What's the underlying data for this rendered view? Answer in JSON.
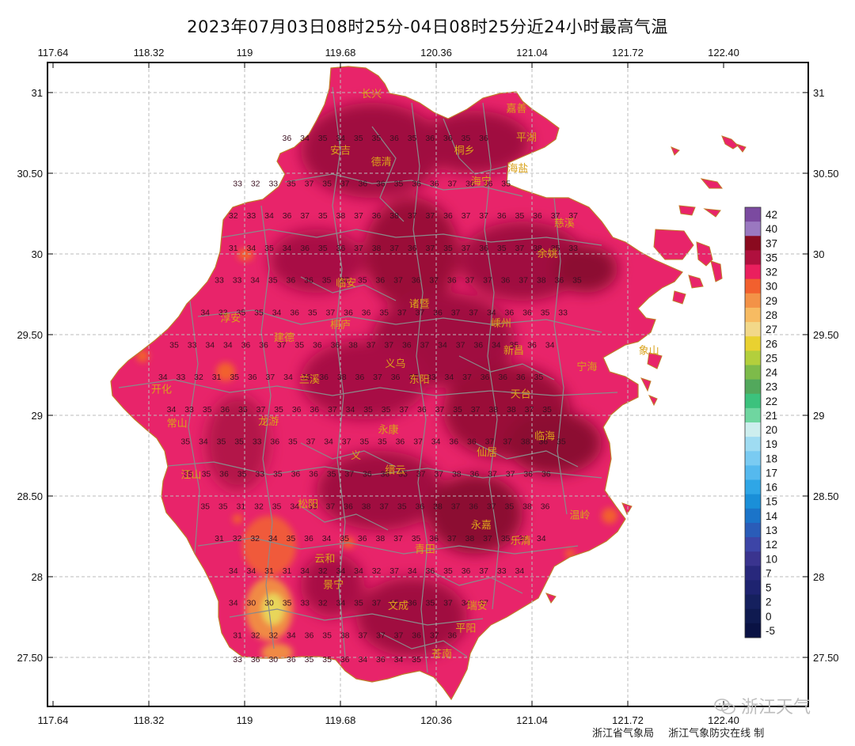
{
  "title": "2023年07月03日08时25分-04日08时25分近24小时最高气温",
  "x_ticks": [
    "117.64",
    "118.32",
    "119",
    "119.68",
    "120.36",
    "121.04",
    "121.72",
    "122.40"
  ],
  "y_ticks": [
    "31",
    "30.50",
    "30",
    "29.50",
    "29",
    "28.50",
    "28",
    "27.50"
  ],
  "legend": {
    "labels": [
      "42",
      "40",
      "37",
      "35",
      "32",
      "30",
      "29",
      "28",
      "27",
      "26",
      "25",
      "24",
      "23",
      "22",
      "21",
      "20",
      "19",
      "18",
      "17",
      "16",
      "15",
      "14",
      "13",
      "12",
      "10",
      "7",
      "5",
      "2",
      "0",
      "-5"
    ],
    "colors": [
      "#7b4aa0",
      "#9a78c0",
      "#8a0a1f",
      "#b0103e",
      "#ea1f5e",
      "#f2602e",
      "#f39247",
      "#f7bb62",
      "#f2d889",
      "#e9d130",
      "#b3cf3c",
      "#7dbb4a",
      "#52a85c",
      "#3cc27d",
      "#6fd6a0",
      "#cdeeee",
      "#9fdcf2",
      "#7acbf2",
      "#55b9ee",
      "#2fa6e6",
      "#1a8fd8",
      "#1b74c9",
      "#2a5cb8",
      "#3d45a7",
      "#3a348f",
      "#28287c",
      "#1e2370",
      "#15205e",
      "#0f1a50",
      "#0a1244"
    ]
  },
  "cities": [
    {
      "name": "长兴",
      "lon": 119.9,
      "lat": 30.97
    },
    {
      "name": "嘉善",
      "lon": 120.93,
      "lat": 30.88
    },
    {
      "name": "平湖",
      "lon": 121.0,
      "lat": 30.7
    },
    {
      "name": "安吉",
      "lon": 119.68,
      "lat": 30.62
    },
    {
      "name": "德清",
      "lon": 119.97,
      "lat": 30.55
    },
    {
      "name": "桐乡",
      "lon": 120.56,
      "lat": 30.62
    },
    {
      "name": "海盐",
      "lon": 120.94,
      "lat": 30.51
    },
    {
      "name": "海宁",
      "lon": 120.68,
      "lat": 30.43
    },
    {
      "name": "慈溪",
      "lon": 121.27,
      "lat": 30.17
    },
    {
      "name": "余姚",
      "lon": 121.15,
      "lat": 29.98
    },
    {
      "name": "临安",
      "lon": 119.72,
      "lat": 29.8
    },
    {
      "name": "诸暨",
      "lon": 120.24,
      "lat": 29.67
    },
    {
      "name": "嵊州",
      "lon": 120.82,
      "lat": 29.55
    },
    {
      "name": "淳安",
      "lon": 118.9,
      "lat": 29.58
    },
    {
      "name": "桐庐",
      "lon": 119.68,
      "lat": 29.54
    },
    {
      "name": "建德",
      "lon": 119.28,
      "lat": 29.46
    },
    {
      "name": "新昌",
      "lon": 120.91,
      "lat": 29.38
    },
    {
      "name": "象山",
      "lon": 121.87,
      "lat": 29.38
    },
    {
      "name": "宁海",
      "lon": 121.43,
      "lat": 29.28
    },
    {
      "name": "义乌",
      "lon": 120.07,
      "lat": 29.3
    },
    {
      "name": "兰溪",
      "lon": 119.46,
      "lat": 29.2
    },
    {
      "name": "东阳",
      "lon": 120.24,
      "lat": 29.2
    },
    {
      "name": "开化",
      "lon": 118.41,
      "lat": 29.14
    },
    {
      "name": "天台",
      "lon": 120.96,
      "lat": 29.11
    },
    {
      "name": "常山",
      "lon": 118.52,
      "lat": 28.93
    },
    {
      "name": "龙游",
      "lon": 119.17,
      "lat": 28.94
    },
    {
      "name": "永康",
      "lon": 120.02,
      "lat": 28.89
    },
    {
      "name": "临海",
      "lon": 121.13,
      "lat": 28.85
    },
    {
      "name": "义",
      "lon": 119.79,
      "lat": 28.73
    },
    {
      "name": "仙居",
      "lon": 120.72,
      "lat": 28.75
    },
    {
      "name": "江山",
      "lon": 118.62,
      "lat": 28.61
    },
    {
      "name": "缙云",
      "lon": 120.07,
      "lat": 28.64
    },
    {
      "name": "松阳",
      "lon": 119.45,
      "lat": 28.43
    },
    {
      "name": "永嘉",
      "lon": 120.68,
      "lat": 28.3
    },
    {
      "name": "温岭",
      "lon": 121.38,
      "lat": 28.36
    },
    {
      "name": "乐清",
      "lon": 120.96,
      "lat": 28.2
    },
    {
      "name": "青田",
      "lon": 120.28,
      "lat": 28.15
    },
    {
      "name": "云和",
      "lon": 119.57,
      "lat": 28.09
    },
    {
      "name": "景宁",
      "lon": 119.63,
      "lat": 27.93
    },
    {
      "name": "文成",
      "lon": 120.09,
      "lat": 27.8
    },
    {
      "name": "瑞安",
      "lon": 120.65,
      "lat": 27.8
    },
    {
      "name": "平阳",
      "lon": 120.57,
      "lat": 27.66
    },
    {
      "name": "苍南",
      "lon": 120.4,
      "lat": 27.5
    }
  ],
  "station_values": {
    "rows": [
      {
        "lat": 30.7,
        "lon_start": 119.3,
        "values": [
          "36",
          "34",
          "35",
          "34",
          "35",
          "35",
          "36",
          "35",
          "36",
          "36",
          "35",
          "36"
        ]
      },
      {
        "lat": 30.42,
        "lon_start": 118.95,
        "values": [
          "33",
          "32",
          "33",
          "35",
          "37",
          "35",
          "37",
          "36",
          "36",
          "35",
          "36",
          "36",
          "37",
          "36",
          "36",
          "35"
        ]
      },
      {
        "lat": 30.22,
        "lon_start": 118.92,
        "values": [
          "32",
          "33",
          "34",
          "36",
          "37",
          "35",
          "38",
          "37",
          "36",
          "38",
          "37",
          "37",
          "36",
          "37",
          "37",
          "36",
          "35",
          "36",
          "37",
          "37"
        ]
      },
      {
        "lat": 30.02,
        "lon_start": 118.92,
        "values": [
          "31",
          "34",
          "35",
          "34",
          "36",
          "35",
          "36",
          "37",
          "38",
          "37",
          "36",
          "37",
          "35",
          "37",
          "36",
          "35",
          "37",
          "38",
          "35",
          "33"
        ]
      },
      {
        "lat": 29.82,
        "lon_start": 118.82,
        "values": [
          "33",
          "33",
          "34",
          "35",
          "36",
          "36",
          "35",
          "37",
          "35",
          "36",
          "37",
          "36",
          "37",
          "36",
          "37",
          "37",
          "36",
          "37",
          "38",
          "36",
          "35"
        ]
      },
      {
        "lat": 29.62,
        "lon_start": 118.72,
        "values": [
          "34",
          "33",
          "35",
          "35",
          "34",
          "36",
          "35",
          "37",
          "36",
          "36",
          "35",
          "37",
          "37",
          "36",
          "37",
          "37",
          "34",
          "36",
          "36",
          "35",
          "33"
        ]
      },
      {
        "lat": 29.42,
        "lon_start": 118.5,
        "values": [
          "35",
          "33",
          "34",
          "34",
          "36",
          "36",
          "37",
          "35",
          "36",
          "36",
          "38",
          "37",
          "37",
          "36",
          "37",
          "34",
          "37",
          "36",
          "34",
          "35",
          "36",
          "34"
        ]
      },
      {
        "lat": 29.22,
        "lon_start": 118.42,
        "values": [
          "34",
          "33",
          "32",
          "31",
          "35",
          "36",
          "37",
          "34",
          "35",
          "36",
          "38",
          "36",
          "37",
          "36",
          "37",
          "33",
          "34",
          "37",
          "36",
          "36",
          "36",
          "35"
        ]
      },
      {
        "lat": 29.02,
        "lon_start": 118.48,
        "values": [
          "34",
          "33",
          "35",
          "36",
          "35",
          "37",
          "35",
          "36",
          "36",
          "37",
          "34",
          "35",
          "35",
          "37",
          "36",
          "37",
          "35",
          "37",
          "38",
          "38",
          "37",
          "35"
        ]
      },
      {
        "lat": 28.82,
        "lon_start": 118.58,
        "values": [
          "35",
          "34",
          "35",
          "35",
          "33",
          "36",
          "35",
          "37",
          "34",
          "37",
          "35",
          "35",
          "36",
          "37",
          "34",
          "36",
          "36",
          "37",
          "37",
          "38",
          "36",
          "35"
        ]
      },
      {
        "lat": 28.62,
        "lon_start": 118.6,
        "values": [
          "35",
          "35",
          "36",
          "35",
          "33",
          "35",
          "36",
          "36",
          "35",
          "37",
          "36",
          "36",
          "35",
          "37",
          "37",
          "38",
          "36",
          "37",
          "37",
          "36",
          "36"
        ]
      },
      {
        "lat": 28.42,
        "lon_start": 118.72,
        "values": [
          "35",
          "35",
          "31",
          "32",
          "35",
          "34",
          "33",
          "37",
          "36",
          "38",
          "37",
          "35",
          "36",
          "38",
          "37",
          "36",
          "37",
          "35",
          "38",
          "36"
        ]
      },
      {
        "lat": 28.22,
        "lon_start": 118.82,
        "values": [
          "31",
          "32",
          "32",
          "34",
          "35",
          "36",
          "34",
          "35",
          "36",
          "38",
          "37",
          "35",
          "36",
          "37",
          "38",
          "37",
          "35",
          "36",
          "34"
        ]
      },
      {
        "lat": 28.02,
        "lon_start": 118.92,
        "values": [
          "34",
          "34",
          "31",
          "31",
          "34",
          "32",
          "34",
          "34",
          "32",
          "37",
          "34",
          "36",
          "35",
          "36",
          "37",
          "33",
          "34"
        ]
      },
      {
        "lat": 27.82,
        "lon_start": 118.92,
        "values": [
          "34",
          "30",
          "30",
          "35",
          "33",
          "32",
          "34",
          "35",
          "37",
          "35",
          "36",
          "35",
          "37",
          "34",
          "37"
        ]
      },
      {
        "lat": 27.62,
        "lon_start": 118.95,
        "values": [
          "31",
          "32",
          "32",
          "34",
          "36",
          "35",
          "38",
          "37",
          "37",
          "37",
          "36",
          "37",
          "36"
        ]
      },
      {
        "lat": 27.47,
        "lon_start": 118.95,
        "values": [
          "33",
          "36",
          "30",
          "36",
          "35",
          "35",
          "36",
          "34",
          "36",
          "34",
          "35"
        ]
      }
    ]
  },
  "credit": [
    "浙江省气象局",
    "浙江气象防灾在线 制"
  ],
  "watermark": "浙江天气"
}
